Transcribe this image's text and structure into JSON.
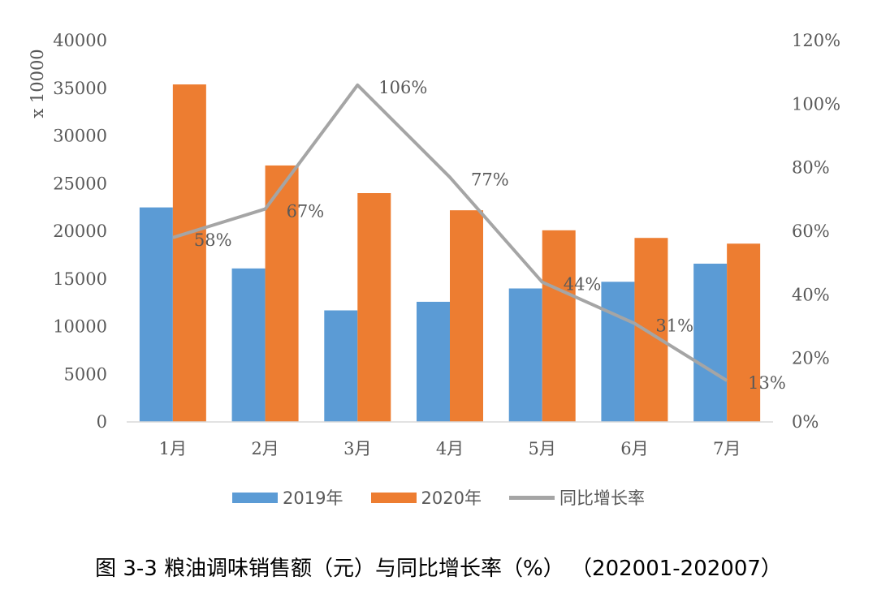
{
  "chart_data": {
    "type": "bar",
    "categories": [
      "1月",
      "2月",
      "3月",
      "4月",
      "5月",
      "6月",
      "7月"
    ],
    "series": [
      {
        "name": "2019年",
        "type": "bar",
        "axis": "left",
        "color": "#5B9BD5",
        "values": [
          22500,
          16100,
          11700,
          12600,
          14000,
          14700,
          16600
        ]
      },
      {
        "name": "2020年",
        "type": "bar",
        "axis": "left",
        "color": "#ED7D31",
        "values": [
          35400,
          26900,
          24000,
          22200,
          20100,
          19300,
          18700
        ]
      },
      {
        "name": "同比增长率",
        "type": "line",
        "axis": "right",
        "color": "#A5A5A5",
        "values": [
          58,
          67,
          106,
          77,
          44,
          31,
          13
        ],
        "labels": [
          "58%",
          "67%",
          "106%",
          "77%",
          "44%",
          "31%",
          "13%"
        ]
      }
    ],
    "ylabel": "x 10000",
    "ylim": [
      0,
      40000
    ],
    "y_ticks": [
      "0",
      "5000",
      "10000",
      "15000",
      "20000",
      "25000",
      "30000",
      "35000",
      "40000"
    ],
    "y2lim": [
      0,
      120
    ],
    "y2_ticks": [
      "0%",
      "20%",
      "40%",
      "60%",
      "80%",
      "100%",
      "120%"
    ],
    "grid": false,
    "legend": "bottom"
  },
  "caption": "图 3-3 粮油调味销售额（元）与同比增长率（%）  （202001-202007）"
}
